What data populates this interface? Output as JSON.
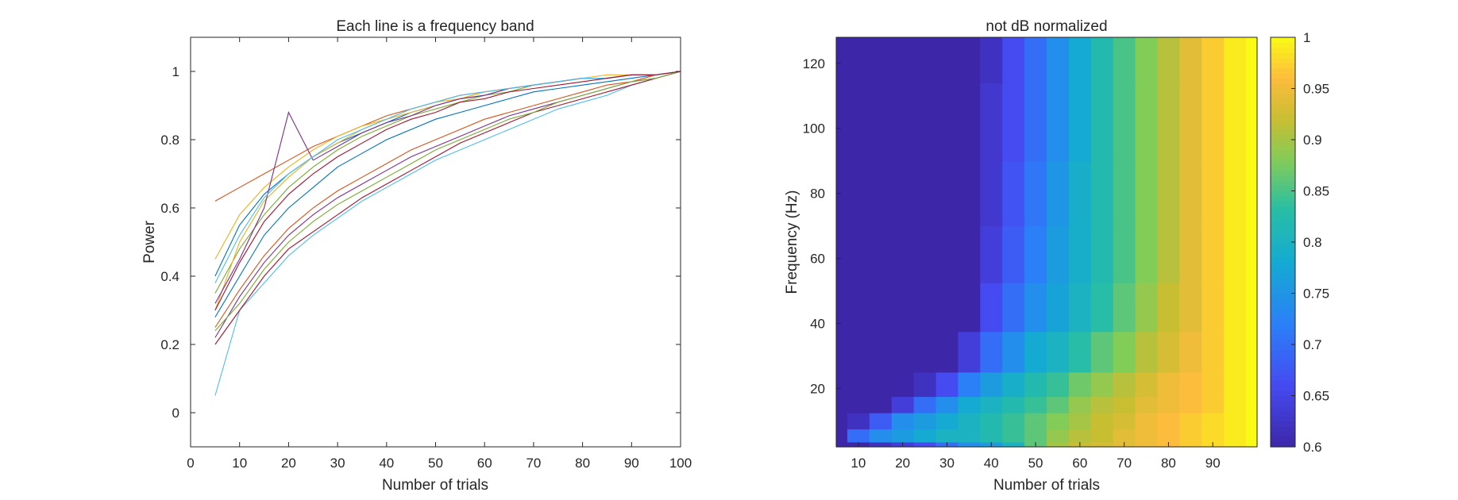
{
  "chart_data": [
    {
      "type": "line",
      "title": "Each line is a frequency band",
      "xlabel": "Number of trials",
      "ylabel": "Power",
      "xlim": [
        0,
        100
      ],
      "ylim": [
        -0.1,
        1.1
      ],
      "xticks": [
        0,
        10,
        20,
        30,
        40,
        50,
        60,
        70,
        80,
        90,
        100
      ],
      "yticks": [
        0,
        0.2,
        0.4,
        0.6,
        0.8,
        1
      ],
      "ytick_labels": [
        "0",
        "0.2",
        "0.4",
        "0.6",
        "0.8",
        "1"
      ],
      "grid": false,
      "x": [
        5,
        10,
        15,
        20,
        25,
        30,
        35,
        40,
        45,
        50,
        55,
        60,
        65,
        70,
        75,
        80,
        85,
        90,
        95,
        100
      ],
      "series": [
        {
          "color": "#0072BD",
          "values": [
            0.28,
            0.4,
            0.52,
            0.6,
            0.66,
            0.72,
            0.76,
            0.8,
            0.83,
            0.86,
            0.88,
            0.9,
            0.92,
            0.94,
            0.95,
            0.96,
            0.97,
            0.98,
            0.99,
            1.0
          ]
        },
        {
          "color": "#D95319",
          "values": [
            0.62,
            0.66,
            0.7,
            0.74,
            0.78,
            0.81,
            0.84,
            0.87,
            0.89,
            0.91,
            0.93,
            0.94,
            0.95,
            0.96,
            0.97,
            0.98,
            0.98,
            0.99,
            0.99,
            1.0
          ]
        },
        {
          "color": "#EDB120",
          "values": [
            0.45,
            0.58,
            0.66,
            0.72,
            0.77,
            0.81,
            0.84,
            0.86,
            0.89,
            0.91,
            0.92,
            0.94,
            0.95,
            0.96,
            0.97,
            0.98,
            0.98,
            0.99,
            0.99,
            1.0
          ]
        },
        {
          "color": "#7E2F8E",
          "values": [
            0.22,
            0.34,
            0.44,
            0.52,
            0.58,
            0.63,
            0.67,
            0.71,
            0.75,
            0.78,
            0.81,
            0.84,
            0.87,
            0.89,
            0.91,
            0.93,
            0.95,
            0.97,
            0.98,
            1.0
          ]
        },
        {
          "color": "#77AC30",
          "values": [
            0.35,
            0.48,
            0.58,
            0.66,
            0.72,
            0.77,
            0.81,
            0.84,
            0.87,
            0.89,
            0.91,
            0.93,
            0.94,
            0.96,
            0.97,
            0.98,
            0.98,
            0.99,
            0.99,
            1.0
          ]
        },
        {
          "color": "#4DBEEE",
          "values": [
            0.05,
            0.3,
            0.38,
            0.46,
            0.52,
            0.57,
            0.62,
            0.66,
            0.7,
            0.74,
            0.77,
            0.8,
            0.83,
            0.86,
            0.89,
            0.91,
            0.93,
            0.96,
            0.98,
            1.0
          ]
        },
        {
          "color": "#A2142F",
          "values": [
            0.2,
            0.3,
            0.4,
            0.48,
            0.53,
            0.58,
            0.63,
            0.67,
            0.71,
            0.75,
            0.79,
            0.82,
            0.85,
            0.88,
            0.9,
            0.92,
            0.94,
            0.96,
            0.98,
            1.0
          ]
        },
        {
          "color": "#0072BD",
          "values": [
            0.4,
            0.55,
            0.64,
            0.7,
            0.75,
            0.79,
            0.82,
            0.85,
            0.88,
            0.9,
            0.92,
            0.93,
            0.95,
            0.96,
            0.97,
            0.98,
            0.98,
            0.99,
            0.99,
            1.0
          ]
        },
        {
          "color": "#D95319",
          "values": [
            0.25,
            0.36,
            0.46,
            0.54,
            0.6,
            0.65,
            0.69,
            0.73,
            0.77,
            0.8,
            0.83,
            0.86,
            0.88,
            0.9,
            0.92,
            0.94,
            0.96,
            0.97,
            0.99,
            1.0
          ]
        },
        {
          "color": "#EDB120",
          "values": [
            0.3,
            0.5,
            0.62,
            0.69,
            0.75,
            0.79,
            0.83,
            0.86,
            0.88,
            0.9,
            0.92,
            0.94,
            0.95,
            0.96,
            0.97,
            0.98,
            0.99,
            0.99,
            0.99,
            1.0
          ]
        },
        {
          "color": "#7E2F8E",
          "values": [
            0.32,
            0.45,
            0.6,
            0.88,
            0.74,
            0.78,
            0.82,
            0.85,
            0.87,
            0.9,
            0.92,
            0.93,
            0.95,
            0.96,
            0.97,
            0.98,
            0.98,
            0.99,
            0.99,
            1.0
          ]
        },
        {
          "color": "#77AC30",
          "values": [
            0.24,
            0.32,
            0.42,
            0.5,
            0.56,
            0.61,
            0.65,
            0.69,
            0.73,
            0.77,
            0.8,
            0.83,
            0.86,
            0.88,
            0.91,
            0.93,
            0.95,
            0.97,
            0.98,
            1.0
          ]
        },
        {
          "color": "#4DBEEE",
          "values": [
            0.38,
            0.52,
            0.63,
            0.7,
            0.75,
            0.8,
            0.83,
            0.86,
            0.89,
            0.91,
            0.93,
            0.94,
            0.95,
            0.96,
            0.97,
            0.98,
            0.98,
            0.99,
            0.99,
            1.0
          ]
        },
        {
          "color": "#A2142F",
          "values": [
            0.3,
            0.44,
            0.56,
            0.64,
            0.7,
            0.75,
            0.79,
            0.83,
            0.86,
            0.88,
            0.91,
            0.92,
            0.94,
            0.95,
            0.96,
            0.97,
            0.98,
            0.99,
            0.99,
            1.0
          ]
        }
      ]
    },
    {
      "type": "heatmap",
      "title": "not dB normalized",
      "xlabel": "Number of trials",
      "ylabel": "Frequency (Hz)",
      "xlim": [
        5,
        100
      ],
      "ylim": [
        2,
        128
      ],
      "xticks": [
        10,
        20,
        30,
        40,
        50,
        60,
        70,
        80,
        90
      ],
      "yticks": [
        20,
        40,
        60,
        80,
        100,
        120
      ],
      "colorbar": {
        "min": 0.6,
        "max": 1,
        "ticks": [
          0.6,
          0.65,
          0.7,
          0.75,
          0.8,
          0.85,
          0.9,
          0.95,
          1
        ],
        "tick_labels": [
          "0.6",
          "0.65",
          "0.7",
          "0.75",
          "0.8",
          "0.85",
          "0.9",
          "0.95",
          "1"
        ],
        "colormap": "parula"
      },
      "x": [
        5,
        10,
        15,
        20,
        25,
        30,
        35,
        40,
        45,
        50,
        55,
        60,
        65,
        70,
        75,
        80,
        85,
        90,
        95,
        100
      ],
      "y": [
        2,
        5,
        10,
        15,
        20,
        30,
        45,
        60,
        80,
        100,
        128
      ],
      "z": [
        [
          0.6,
          0.6,
          0.62,
          0.64,
          0.66,
          0.7,
          0.74,
          0.76,
          0.8,
          0.86,
          0.9,
          0.92,
          0.93,
          0.94,
          0.95,
          0.96,
          0.97,
          0.98,
          0.99,
          1.0
        ],
        [
          0.6,
          0.7,
          0.74,
          0.76,
          0.78,
          0.8,
          0.8,
          0.82,
          0.84,
          0.86,
          0.89,
          0.91,
          0.92,
          0.94,
          0.95,
          0.96,
          0.97,
          0.98,
          0.99,
          1.0
        ],
        [
          0.6,
          0.62,
          0.68,
          0.74,
          0.76,
          0.78,
          0.8,
          0.82,
          0.84,
          0.86,
          0.88,
          0.9,
          0.92,
          0.93,
          0.95,
          0.96,
          0.97,
          0.98,
          0.99,
          1.0
        ],
        [
          0.6,
          0.6,
          0.6,
          0.64,
          0.7,
          0.74,
          0.78,
          0.8,
          0.82,
          0.84,
          0.86,
          0.89,
          0.91,
          0.92,
          0.94,
          0.95,
          0.96,
          0.97,
          0.99,
          1.0
        ],
        [
          0.6,
          0.6,
          0.6,
          0.6,
          0.62,
          0.66,
          0.72,
          0.76,
          0.79,
          0.82,
          0.84,
          0.87,
          0.89,
          0.91,
          0.93,
          0.95,
          0.96,
          0.97,
          0.99,
          1.0
        ],
        [
          0.6,
          0.6,
          0.6,
          0.6,
          0.6,
          0.6,
          0.64,
          0.7,
          0.74,
          0.78,
          0.8,
          0.83,
          0.86,
          0.88,
          0.91,
          0.93,
          0.95,
          0.97,
          0.99,
          1.0
        ],
        [
          0.6,
          0.6,
          0.6,
          0.6,
          0.6,
          0.6,
          0.6,
          0.66,
          0.7,
          0.74,
          0.77,
          0.8,
          0.83,
          0.86,
          0.89,
          0.92,
          0.94,
          0.97,
          0.99,
          1.0
        ],
        [
          0.6,
          0.6,
          0.6,
          0.6,
          0.6,
          0.6,
          0.6,
          0.64,
          0.68,
          0.72,
          0.76,
          0.79,
          0.82,
          0.85,
          0.88,
          0.91,
          0.94,
          0.97,
          0.99,
          1.0
        ],
        [
          0.6,
          0.6,
          0.6,
          0.6,
          0.6,
          0.6,
          0.6,
          0.63,
          0.67,
          0.71,
          0.75,
          0.79,
          0.82,
          0.85,
          0.88,
          0.91,
          0.94,
          0.97,
          0.99,
          1.0
        ],
        [
          0.6,
          0.6,
          0.6,
          0.6,
          0.6,
          0.6,
          0.6,
          0.63,
          0.66,
          0.7,
          0.74,
          0.78,
          0.82,
          0.85,
          0.88,
          0.91,
          0.94,
          0.97,
          0.99,
          1.0
        ],
        [
          0.6,
          0.6,
          0.6,
          0.6,
          0.6,
          0.6,
          0.6,
          0.62,
          0.66,
          0.7,
          0.74,
          0.78,
          0.82,
          0.85,
          0.88,
          0.91,
          0.94,
          0.97,
          0.99,
          1.0
        ]
      ]
    }
  ]
}
